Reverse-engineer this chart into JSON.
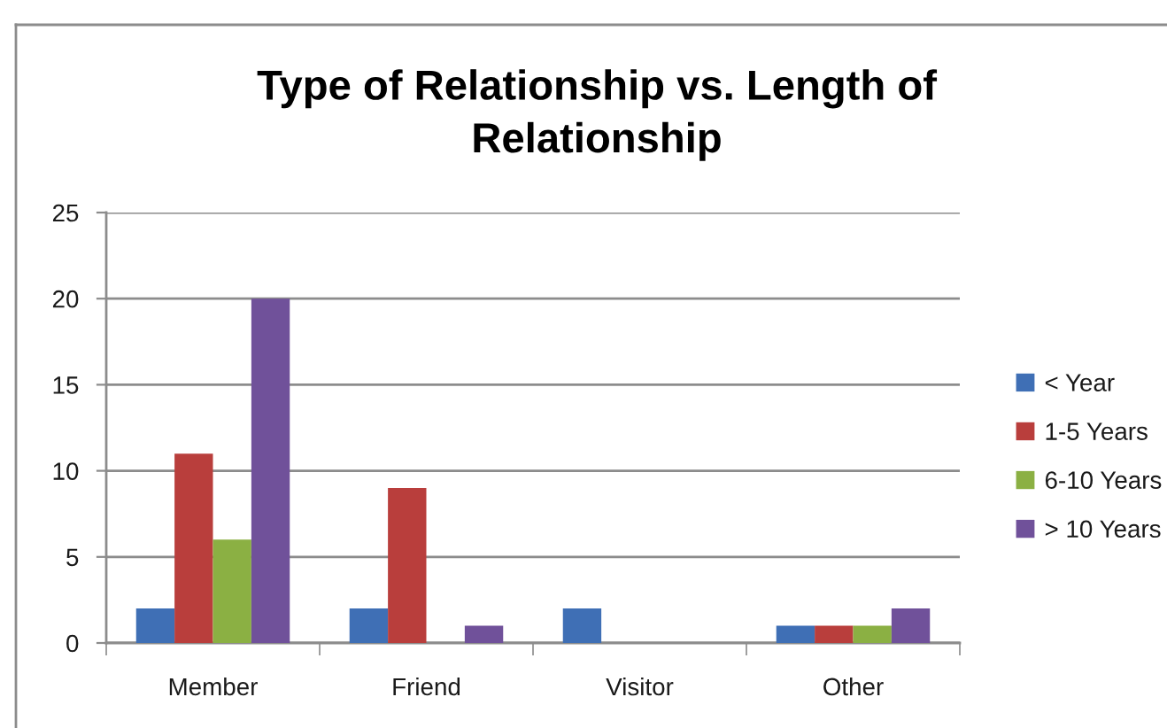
{
  "chart_data": {
    "type": "bar",
    "title": "Type of Relationship vs. Length of Relationship",
    "categories": [
      "Member",
      "Friend",
      "Visitor",
      "Other"
    ],
    "series": [
      {
        "name": "< Year",
        "color": "#3f6fb5",
        "values": [
          2,
          2,
          2,
          1
        ]
      },
      {
        "name": "1-5 Years",
        "color": "#b93e3c",
        "values": [
          11,
          9,
          0,
          1
        ]
      },
      {
        "name": "6-10 Years",
        "color": "#8bb043",
        "values": [
          6,
          0,
          0,
          1
        ]
      },
      {
        "name": "> 10 Years",
        "color": "#70519a",
        "values": [
          20,
          1,
          0,
          2
        ]
      }
    ],
    "ylim": [
      0,
      25
    ],
    "yticks": [
      0,
      5,
      10,
      15,
      20,
      25
    ],
    "grid": "y",
    "legend": "right"
  }
}
